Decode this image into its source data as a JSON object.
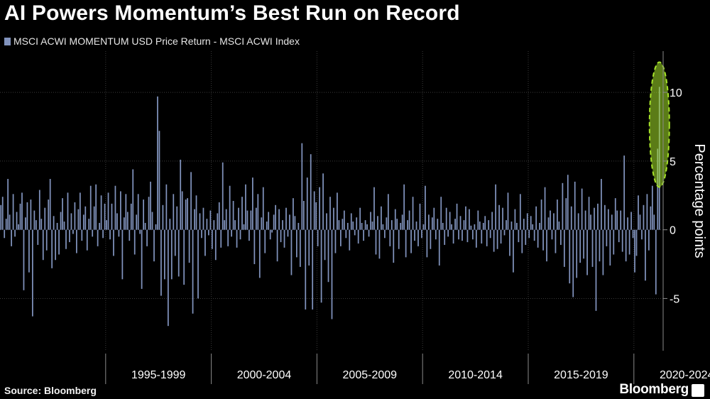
{
  "header": {
    "title": "AI Powers Momentum’s Best Run on Record"
  },
  "footer": {
    "source": "Source: Bloomberg",
    "brand": "Bloomberg"
  },
  "colors": {
    "bar": "#8193bd",
    "highlight": "#a6e22a",
    "grid": "#3a3a3a",
    "axis": "#8a8a8a"
  },
  "chart_data": {
    "type": "bar",
    "title": "AI Powers Momentum’s Best Run on Record",
    "ylabel": "Percentage points",
    "ylim": [
      -8.8,
      13
    ],
    "yticks": [
      -5,
      0,
      5,
      10
    ],
    "grid": true,
    "legend_position": "top-left",
    "x_periods": [
      "1995-1999",
      "2000-2004",
      "2005-2009",
      "2010-2014",
      "2015-2019",
      "2020-2024"
    ],
    "series": [
      {
        "name": "MSCI ACWI MOMENTUM USD Price Return - MSCI ACWI Index",
        "start": "1990-01",
        "frequency": "monthly",
        "values": [
          1.8,
          2.4,
          -0.6,
          0.8,
          3.7,
          1.1,
          -1.2,
          2.6,
          -0.5,
          1.3,
          0.4,
          1.9,
          2.7,
          -4.4,
          0.9,
          2.0,
          -3.1,
          2.2,
          -6.3,
          1.4,
          0.7,
          -1.1,
          2.9,
          0.8,
          -2.2,
          1.6,
          -1.5,
          2.2,
          3.7,
          -2.8,
          1.0,
          -2.2,
          0.5,
          -1.8,
          1.3,
          2.3,
          0.6,
          -1.4,
          2.7,
          -0.9,
          1.2,
          -0.3,
          2.0,
          -1.7,
          1.5,
          2.7,
          -0.8,
          1.1,
          1.7,
          -1.5,
          0.8,
          3.2,
          -0.5,
          1.7,
          3.3,
          -1.2,
          0.5,
          2.5,
          -0.6,
          1.9,
          0.7,
          2.7,
          -0.7,
          1.9,
          -1.9,
          3.2,
          1.2,
          -0.5,
          2.8,
          -3.6,
          0.9,
          2.6,
          1.3,
          -0.8,
          1.9,
          4.4,
          -1.8,
          1.1,
          2.6,
          -0.3,
          -4.3,
          2.2,
          0.5,
          -1.2,
          2.4,
          3.5,
          1.3,
          -2.3,
          0.4,
          9.7,
          7.2,
          -4.8,
          1.8,
          -3.6,
          3.3,
          -7.0,
          0.8,
          -3.6,
          2.6,
          -1.9,
          1.7,
          -3.4,
          5.1,
          2.8,
          -4.0,
          2.2,
          2.3,
          -2.4,
          4.2,
          -6.1,
          1.5,
          2.5,
          -5.0,
          1.2,
          -0.6,
          1.6,
          -1.9,
          0.8,
          -0.4,
          1.4,
          -1.4,
          0.7,
          -2.2,
          1.2,
          2.0,
          -1.3,
          4.9,
          0.7,
          1.5,
          -1.2,
          3.2,
          -0.5,
          2.1,
          0.7,
          -1.3,
          1.6,
          -0.7,
          2.4,
          0.4,
          3.3,
          1.4,
          -0.8,
          1.4,
          3.8,
          -2.5,
          1.6,
          2.6,
          -3.5,
          0.9,
          3.1,
          -1.7,
          0.6,
          1.3,
          -0.7,
          -0.2,
          1.1,
          1.8,
          -2.3,
          1.5,
          -0.9,
          0.7,
          -1.3,
          1.6,
          -0.5,
          1.1,
          -3.3,
          2.3,
          1.0,
          -2.0,
          0.5,
          -2.7,
          6.3,
          2.1,
          -5.8,
          3.8,
          -2.6,
          5.5,
          -5.8,
          2.8,
          2.0,
          -1.2,
          3.1,
          -5.3,
          4.1,
          -2.2,
          1.2,
          -3.8,
          2.4,
          -6.5,
          1.6,
          -1.7,
          2.7,
          0.7,
          -1.2,
          0.8,
          1.4,
          -0.6,
          0.5,
          -1.5,
          1.2,
          0.6,
          -0.4,
          0.9,
          -1.0,
          1.6,
          0.5,
          -0.8,
          0.7,
          0.4,
          -0.5,
          1.3,
          0.6,
          3.1,
          -1.8,
          1.0,
          -2.1,
          1.7,
          0.4,
          -0.6,
          0.9,
          2.6,
          -1.2,
          0.7,
          -2.4,
          1.5,
          0.8,
          -1.4,
          0.5,
          1.1,
          3.3,
          -2.0,
          0.7,
          1.4,
          -1.7,
          2.4,
          -0.8,
          0.6,
          -1.2,
          1.9,
          -0.6,
          0.4,
          3.2,
          -2.0,
          1.1,
          -1.4,
          0.9,
          1.6,
          -0.7,
          0.8,
          -2.6,
          2.4,
          0.5,
          -1.1,
          1.6,
          -0.5,
          1.3,
          0.4,
          -1.0,
          0.8,
          1.9,
          -0.7,
          1.0,
          -0.8,
          0.7,
          1.7,
          -0.9,
          1.5,
          0.3,
          -0.7,
          0.4,
          -1.3,
          1.4,
          0.6,
          -1.0,
          0.5,
          1.0,
          -1.2,
          0.7,
          -0.6,
          1.3,
          -1.6,
          3.3,
          -1.4,
          1.8,
          -1.0,
          1.6,
          -0.4,
          0.7,
          2.7,
          -1.9,
          0.6,
          -3.1,
          1.5,
          0.5,
          -0.9,
          2.6,
          -1.7,
          0.8,
          -1.1,
          1.2,
          -0.6,
          1.0,
          0.4,
          -0.8,
          1.7,
          -1.3,
          0.5,
          2.2,
          -1.5,
          3.1,
          -2.3,
          0.9,
          1.4,
          -0.7,
          1.2,
          -1.7,
          2.2,
          0.6,
          -1.1,
          3.4,
          -2.7,
          2.3,
          4.0,
          -3.9,
          1.7,
          -4.9,
          3.5,
          -3.5,
          1.2,
          -2.4,
          3.0,
          -2.1,
          1.4,
          -3.3,
          2.4,
          1.1,
          -2.7,
          1.6,
          -5.9,
          1.9,
          -2.3,
          3.7,
          -3.3,
          1.8,
          -1.2,
          1.5,
          -2.6,
          1.1,
          -1.8,
          2.3,
          1.4,
          -0.9,
          1.4,
          -1.6,
          5.4,
          -2.3,
          0.9,
          -1.8,
          1.3,
          -0.6,
          -3.1,
          -1.9,
          2.5,
          1.1,
          -0.7,
          1.8,
          -3.7,
          2.6,
          -1.5,
          1.7,
          3.2,
          1.1,
          -4.7,
          5.9,
          10.4
        ]
      }
    ]
  }
}
